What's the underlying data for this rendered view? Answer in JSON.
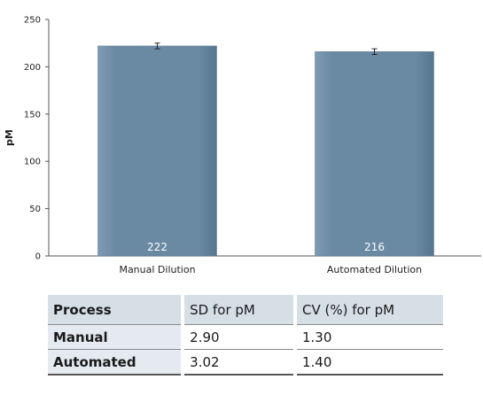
{
  "chart_data": {
    "type": "bar",
    "categories": [
      "Manual Dilution",
      "Automated Dilution"
    ],
    "values": [
      222,
      216
    ],
    "error": [
      3,
      3
    ],
    "value_labels": [
      "222",
      "216"
    ],
    "ylabel": "pM",
    "ylim": [
      0,
      250
    ],
    "yticks": [
      0,
      50,
      100,
      150,
      200,
      250
    ],
    "grid": false,
    "bar_color": "#6a89a3"
  },
  "table": {
    "headers": [
      "Process",
      "SD for pM",
      "CV (%) for pM"
    ],
    "rows": [
      [
        "Manual",
        "2.90",
        "1.30"
      ],
      [
        "Automated",
        "3.02",
        "1.40"
      ]
    ]
  }
}
